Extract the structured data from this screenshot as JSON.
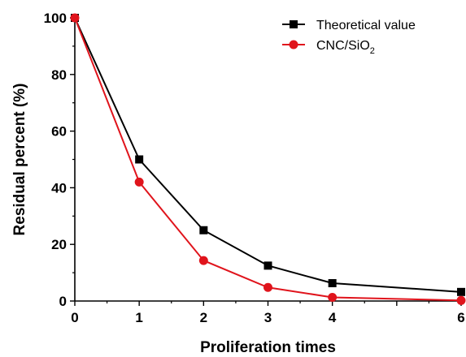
{
  "chart_data": {
    "type": "line",
    "xlabel": "Proliferation times",
    "ylabel": "Residual percent (%)",
    "xlim": [
      0,
      6
    ],
    "ylim": [
      0,
      100
    ],
    "x_ticks": [
      0,
      1,
      2,
      3,
      4,
      6
    ],
    "y_ticks": [
      0,
      20,
      40,
      60,
      80,
      100
    ],
    "grid": false,
    "legend_position": "top-right",
    "series": [
      {
        "name": "Theoretical value",
        "marker": "square",
        "color": "#000000",
        "x": [
          0,
          1,
          2,
          3,
          4,
          6
        ],
        "y": [
          100,
          50,
          25,
          12.5,
          6.3,
          3.2
        ]
      },
      {
        "name": "CNC/SiO",
        "name_subscript": "2",
        "marker": "circle",
        "color": "#e0141c",
        "x": [
          0,
          1,
          2,
          3,
          4,
          6
        ],
        "y": [
          100,
          42,
          14.3,
          4.8,
          1.3,
          0.2
        ]
      }
    ]
  }
}
